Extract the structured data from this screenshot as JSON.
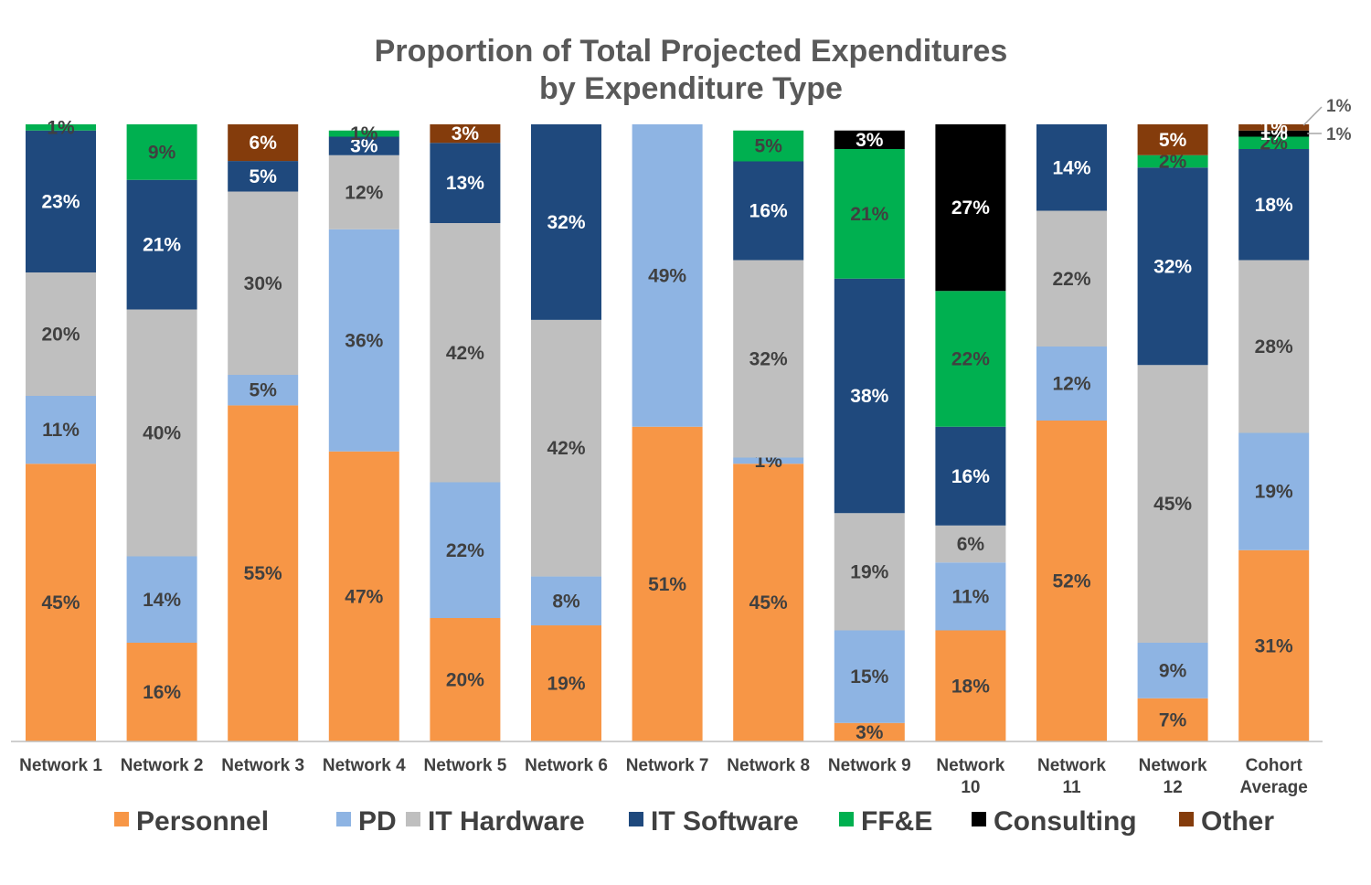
{
  "chart_data": {
    "type": "bar",
    "stacked": true,
    "title": "Proportion of Total Projected Expenditures by Expenditure Type",
    "title_lines": [
      "Proportion of Total Projected Expenditures",
      "by Expenditure Type"
    ],
    "xlabel": "",
    "ylabel": "",
    "ylim": [
      0,
      100
    ],
    "grid": false,
    "legend_position": "bottom",
    "categories": [
      [
        "Network 1"
      ],
      [
        "Network 2"
      ],
      [
        "Network 3"
      ],
      [
        "Network 4"
      ],
      [
        "Network 5"
      ],
      [
        "Network 6"
      ],
      [
        "Network 7"
      ],
      [
        "Network 8"
      ],
      [
        "Network 9"
      ],
      [
        "Network",
        "10"
      ],
      [
        "Network",
        "11"
      ],
      [
        "Network",
        "12"
      ],
      [
        "Cohort",
        "Average"
      ]
    ],
    "series": [
      {
        "name": "Personnel",
        "color": "#F79646",
        "label_color": "#404040",
        "values": [
          45,
          16,
          55,
          47,
          20,
          19,
          51,
          45,
          3,
          18,
          52,
          7,
          31
        ]
      },
      {
        "name": "PD",
        "color": "#8EB4E3",
        "label_color": "#404040",
        "values": [
          11,
          14,
          5,
          36,
          22,
          8,
          49,
          1,
          15,
          11,
          12,
          9,
          19
        ]
      },
      {
        "name": "IT Hardware",
        "color": "#BFBFBF",
        "label_color": "#404040",
        "values": [
          20,
          40,
          30,
          12,
          42,
          42,
          0,
          32,
          19,
          6,
          22,
          45,
          28
        ]
      },
      {
        "name": "IT Software",
        "color": "#1F497D",
        "label_color": "#FFFFFF",
        "values": [
          23,
          21,
          5,
          3,
          13,
          32,
          0,
          16,
          38,
          16,
          14,
          32,
          18
        ]
      },
      {
        "name": "FF&E",
        "color": "#00B050",
        "label_color": "#404040",
        "values": [
          1,
          9,
          0,
          1,
          0,
          0,
          0,
          5,
          21,
          22,
          0,
          2,
          2
        ]
      },
      {
        "name": "Consulting",
        "color": "#000000",
        "label_color": "#FFFFFF",
        "values": [
          0,
          0,
          0,
          0,
          0,
          0,
          0,
          0,
          3,
          27,
          0,
          0,
          1
        ]
      },
      {
        "name": "Other",
        "color": "#843C0C",
        "label_color": "#FFFFFF",
        "values": [
          0,
          0,
          6,
          0,
          3,
          0,
          0,
          0,
          0,
          0,
          0,
          5,
          1
        ]
      }
    ],
    "value_suffix": "%",
    "callouts": [
      "1%",
      "1%"
    ]
  }
}
